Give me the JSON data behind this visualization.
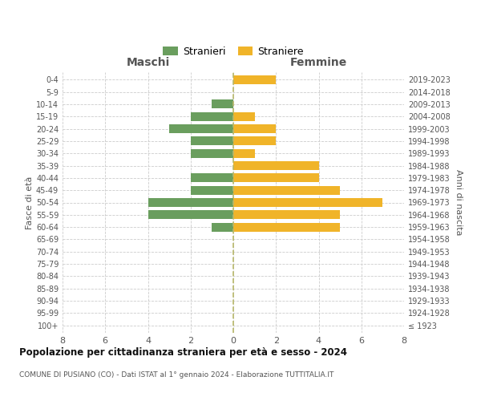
{
  "age_groups": [
    "100+",
    "95-99",
    "90-94",
    "85-89",
    "80-84",
    "75-79",
    "70-74",
    "65-69",
    "60-64",
    "55-59",
    "50-54",
    "45-49",
    "40-44",
    "35-39",
    "30-34",
    "25-29",
    "20-24",
    "15-19",
    "10-14",
    "5-9",
    "0-4"
  ],
  "birth_years": [
    "≤ 1923",
    "1924-1928",
    "1929-1933",
    "1934-1938",
    "1939-1943",
    "1944-1948",
    "1949-1953",
    "1954-1958",
    "1959-1963",
    "1964-1968",
    "1969-1973",
    "1974-1978",
    "1979-1983",
    "1984-1988",
    "1989-1993",
    "1994-1998",
    "1999-2003",
    "2004-2008",
    "2009-2013",
    "2014-2018",
    "2019-2023"
  ],
  "maschi": [
    0,
    0,
    0,
    0,
    0,
    0,
    0,
    0,
    1,
    4,
    4,
    2,
    2,
    0,
    2,
    2,
    3,
    2,
    1,
    0,
    0
  ],
  "femmine": [
    0,
    0,
    0,
    0,
    0,
    0,
    0,
    0,
    5,
    5,
    7,
    5,
    4,
    4,
    1,
    2,
    2,
    1,
    0,
    0,
    2
  ],
  "male_color": "#6a9e5e",
  "female_color": "#f0b429",
  "title": "Popolazione per cittadinanza straniera per età e sesso - 2024",
  "subtitle": "COMUNE DI PUSIANO (CO) - Dati ISTAT al 1° gennaio 2024 - Elaborazione TUTTITALIA.IT",
  "legend_male": "Stranieri",
  "legend_female": "Straniere",
  "xlabel_left": "Maschi",
  "xlabel_right": "Femmine",
  "ylabel_left": "Fasce di età",
  "ylabel_right": "Anni di nascita",
  "xlim": 8,
  "background_color": "#ffffff",
  "grid_color": "#cccccc"
}
